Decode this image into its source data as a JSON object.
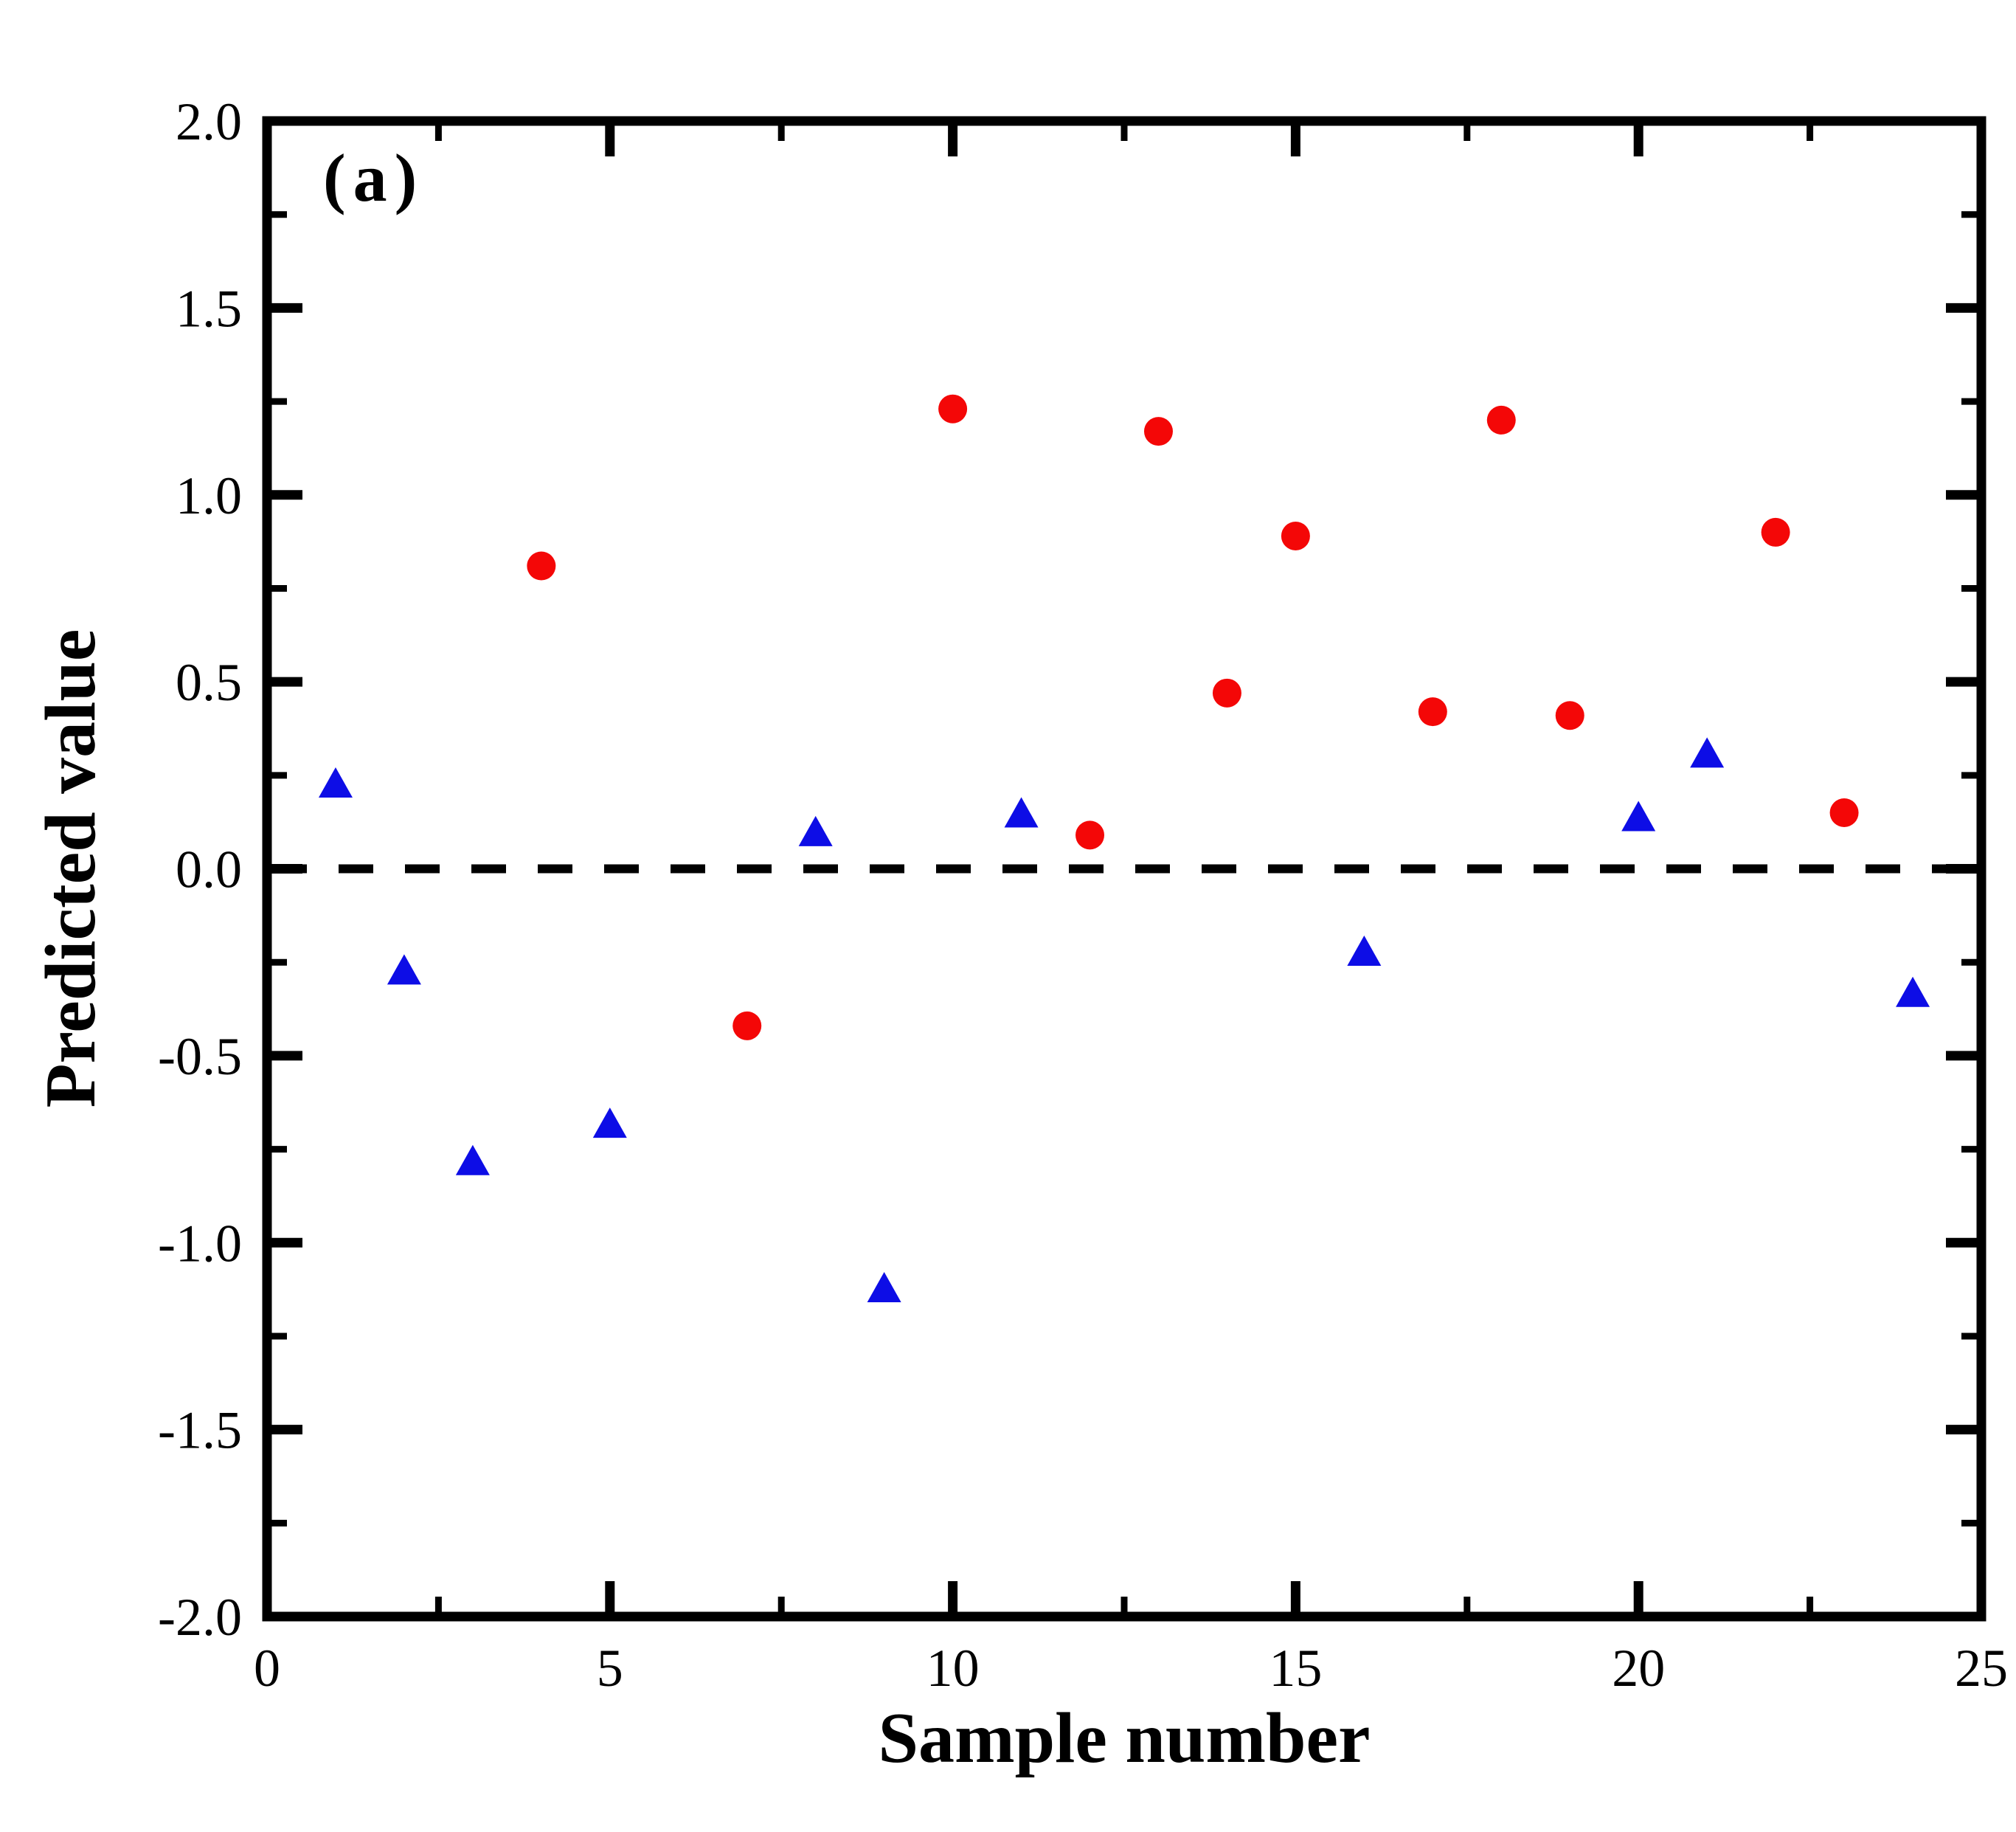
{
  "figure": {
    "panel_label": "(a)",
    "background_color": "#ffffff",
    "axis_color": "#000000"
  },
  "chart_data": {
    "type": "scatter",
    "title": "",
    "xlabel": "Sample number",
    "ylabel": "Predicted value",
    "xlim": [
      0,
      25
    ],
    "ylim": [
      -2.0,
      2.0
    ],
    "grid": false,
    "legend": "none",
    "x_major_ticks": [
      0,
      5,
      10,
      15,
      20,
      25
    ],
    "x_minor_ticks": [
      2.5,
      7.5,
      12.5,
      17.5,
      22.5
    ],
    "x_tick_labels": [
      "0",
      "5",
      "10",
      "15",
      "20",
      "25"
    ],
    "y_major_ticks": [
      -2.0,
      -1.5,
      -1.0,
      -0.5,
      0.0,
      0.5,
      1.0,
      1.5,
      2.0
    ],
    "y_minor_ticks": [
      -1.75,
      -1.25,
      -0.75,
      -0.25,
      0.25,
      0.75,
      1.25,
      1.75
    ],
    "y_tick_labels": [
      "-2.0",
      "-1.5",
      "-1.0",
      "-0.5",
      "0.0",
      "0.5",
      "1.0",
      "1.5",
      "2.0"
    ],
    "reference_line": {
      "y": 0.0,
      "style": "dashed",
      "color": "#000000"
    },
    "series": [
      {
        "name": "red-circle-class",
        "marker": "circle",
        "color": "#f40707",
        "points": [
          [
            4,
            0.81
          ],
          [
            7,
            -0.42
          ],
          [
            10,
            1.23
          ],
          [
            12,
            0.09
          ],
          [
            13,
            1.17
          ],
          [
            14,
            0.47
          ],
          [
            15,
            0.89
          ],
          [
            17,
            0.42
          ],
          [
            18,
            1.2
          ],
          [
            19,
            0.41
          ],
          [
            22,
            0.9
          ],
          [
            23,
            0.15
          ]
        ]
      },
      {
        "name": "blue-triangle-class",
        "marker": "triangle",
        "color": "#0d0de6",
        "points": [
          [
            1,
            0.23
          ],
          [
            2,
            -0.27
          ],
          [
            3,
            -0.78
          ],
          [
            5,
            -0.68
          ],
          [
            8,
            0.1
          ],
          [
            9,
            -1.12
          ],
          [
            11,
            0.15
          ],
          [
            16,
            -0.22
          ],
          [
            20,
            0.14
          ],
          [
            21,
            0.31
          ],
          [
            24,
            -0.33
          ]
        ]
      }
    ]
  }
}
